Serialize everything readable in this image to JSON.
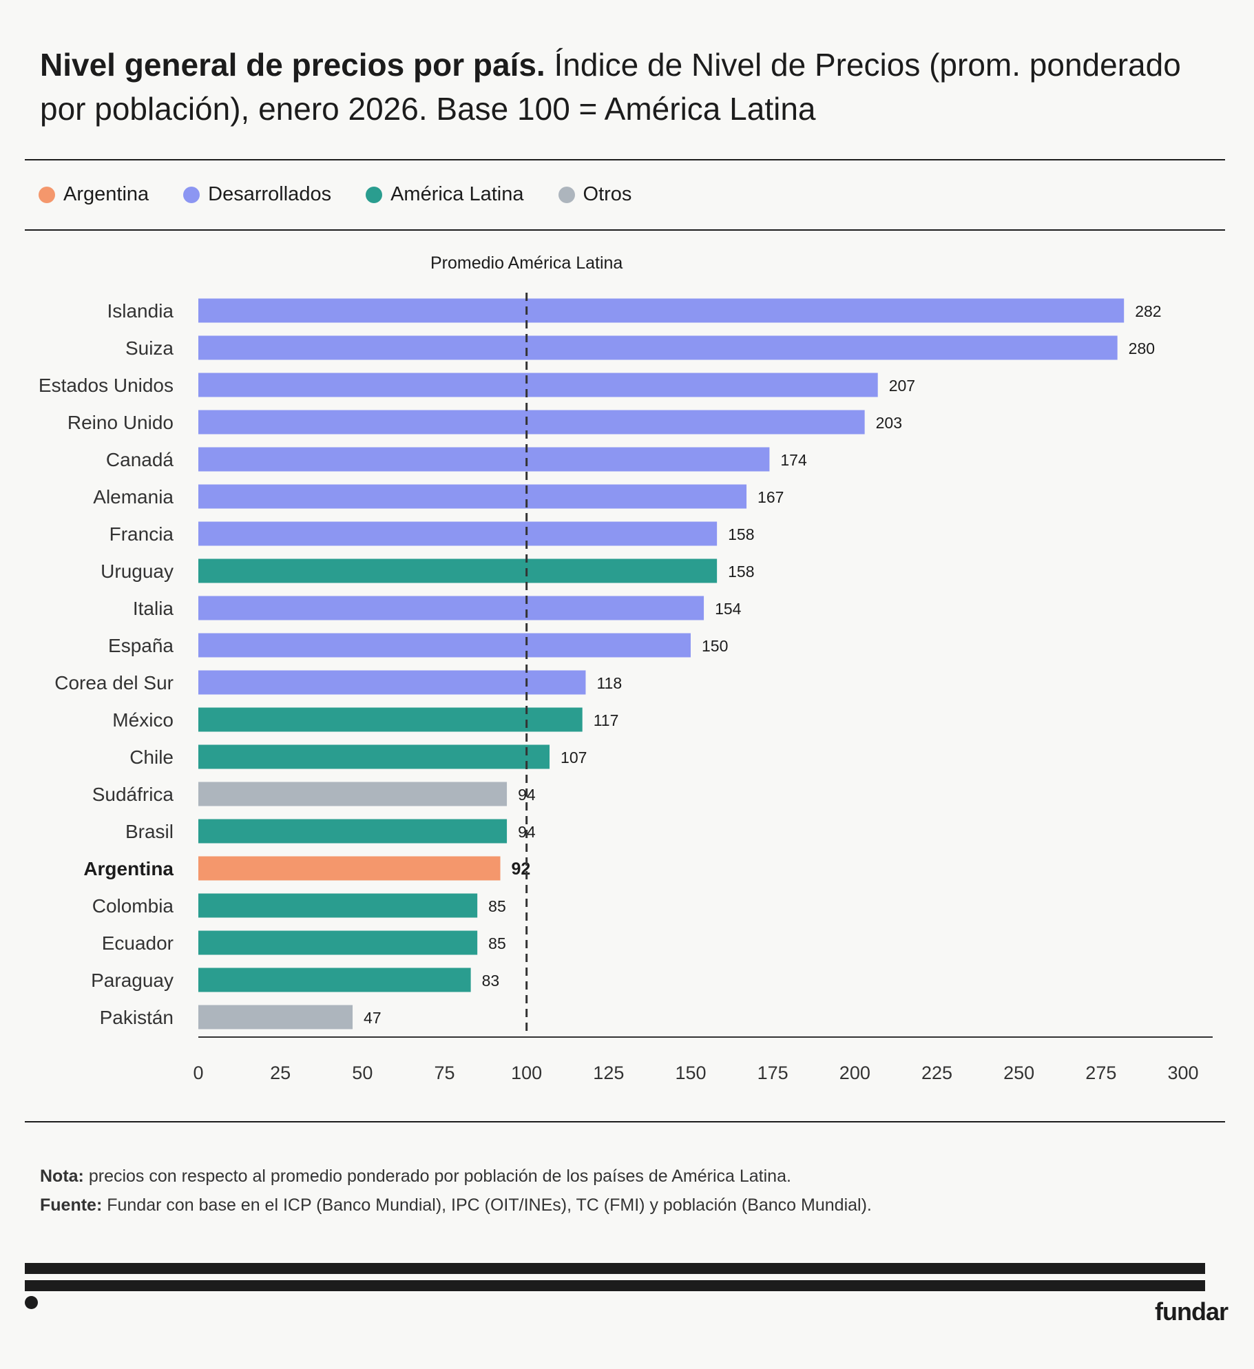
{
  "title": {
    "bold": "Nivel general de precios por país.",
    "rest": " Índice de Nivel de Precios (prom. ponderado por población), enero 2026. Base 100 = América Latina"
  },
  "legend": [
    {
      "label": "Argentina",
      "color": "#F4976C"
    },
    {
      "label": "Desarrollados",
      "color": "#8C96F2"
    },
    {
      "label": "América Latina",
      "color": "#2A9D8F"
    },
    {
      "label": "Otros",
      "color": "#ADB5BD"
    }
  ],
  "chart_data": {
    "type": "bar",
    "orientation": "horizontal",
    "categories": [
      "Islandia",
      "Suiza",
      "Estados Unidos",
      "Reino Unido",
      "Canadá",
      "Alemania",
      "Francia",
      "Uruguay",
      "Italia",
      "España",
      "Corea del Sur",
      "México",
      "Chile",
      "Sudáfrica",
      "Brasil",
      "Argentina",
      "Colombia",
      "Ecuador",
      "Paraguay",
      "Pakistán"
    ],
    "values": [
      282,
      280,
      207,
      203,
      174,
      167,
      158,
      158,
      154,
      150,
      118,
      117,
      107,
      94,
      94,
      92,
      85,
      85,
      83,
      47
    ],
    "groups": [
      "Desarrollados",
      "Desarrollados",
      "Desarrollados",
      "Desarrollados",
      "Desarrollados",
      "Desarrollados",
      "Desarrollados",
      "América Latina",
      "Desarrollados",
      "Desarrollados",
      "Desarrollados",
      "América Latina",
      "América Latina",
      "Otros",
      "América Latina",
      "Argentina",
      "América Latina",
      "América Latina",
      "América Latina",
      "Otros"
    ],
    "highlight": "Argentina",
    "xlim": [
      0,
      300
    ],
    "xticks": [
      0,
      25,
      50,
      75,
      100,
      125,
      150,
      175,
      200,
      225,
      250,
      275,
      300
    ],
    "reference_line": {
      "value": 100,
      "label": "Promedio América Latina",
      "style": "dashed"
    },
    "grid": false,
    "legend_position": "top-left"
  },
  "notes": {
    "nota_label": "Nota:",
    "nota_text": " precios con respecto al promedio ponderado por población de los países de América Latina.",
    "fuente_label": "Fuente:",
    "fuente_text": " Fundar con base en el ICP (Banco Mundial), IPC (OIT/INEs), TC (FMI) y población (Banco Mundial)."
  },
  "footer": {
    "logo": "fundar"
  }
}
